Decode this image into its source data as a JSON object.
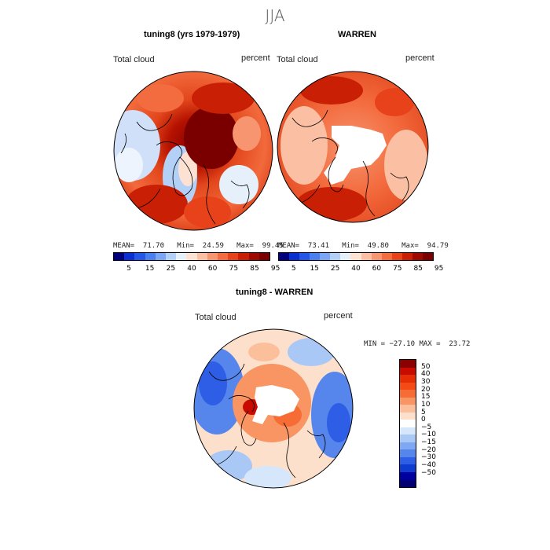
{
  "season": "JJA",
  "panels": [
    {
      "title": "tuning8 (yrs 1979-1979)",
      "left_label": "Total cloud",
      "right_label": "percent",
      "stats": "MEAN=  71.70   Min=  24.59   Max=  99.45"
    },
    {
      "title": "WARREN",
      "left_label": "Total cloud",
      "right_label": "percent",
      "stats": "MEAN=  73.41   Min=  49.80   Max=  94.79"
    }
  ],
  "top_colorbar": {
    "colors": [
      "#00007f",
      "#0a2fd1",
      "#2456e8",
      "#4a7fef",
      "#7ba6f3",
      "#b3d0f7",
      "#e6f0fb",
      "#fde1d2",
      "#fbbfa3",
      "#f79570",
      "#f36c3f",
      "#e7421a",
      "#c91f05",
      "#9e0a00",
      "#7a0000"
    ],
    "tick_labels": [
      "5",
      "15",
      "25",
      "40",
      "60",
      "75",
      "85",
      "95"
    ]
  },
  "diff": {
    "title": "tuning8 - WARREN",
    "left_label": "Total cloud",
    "right_label": "percent",
    "minmax": "MIN = −27.10 MAX =  23.72",
    "colorbar_colors": [
      "#8b0000",
      "#c80a00",
      "#e52e05",
      "#f44a14",
      "#f76c34",
      "#f99563",
      "#fbbf9c",
      "#fde0cc",
      "#ffffff",
      "#d6e7fb",
      "#a9c8f6",
      "#7ea8f1",
      "#5686ec",
      "#2e5ee5",
      "#0f3ccf",
      "#0000a0",
      "#000072"
    ],
    "colorbar_ticks": [
      "50",
      "40",
      "30",
      "20",
      "15",
      "10",
      "5",
      "0",
      "−5",
      "−10",
      "−15",
      "−20",
      "−30",
      "−40",
      "−50"
    ]
  }
}
